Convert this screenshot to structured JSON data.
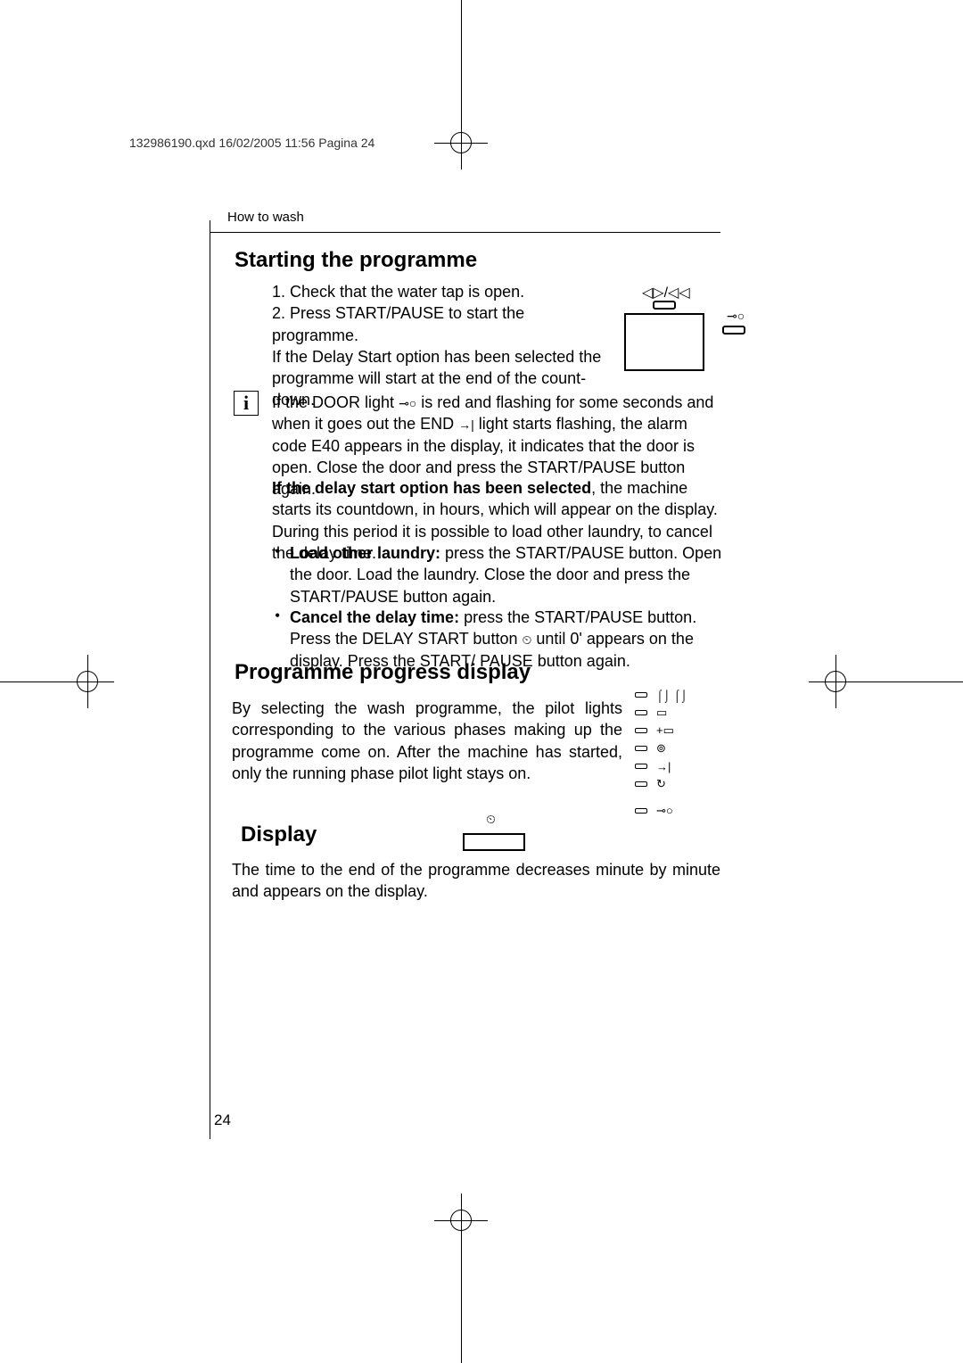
{
  "header": {
    "doc_info": "132986190.qxd  16/02/2005  11:56  Pagina 24",
    "section": "How to wash"
  },
  "headings": {
    "starting": "Starting the programme",
    "progress": "Programme progress display",
    "display": "Display"
  },
  "paragraphs": {
    "p1_line1": "1. Check that the water tap is open.",
    "p1_line2": "2. Press START/PAUSE to start the programme.",
    "p1_line3": "If the Delay Start option has been selected the programme will start at the end of the count-down.",
    "p2_a": "If the DOOR light ",
    "p2_b": " is red and flashing for some seconds and when it goes out the END ",
    "p2_c": " light starts flashing, the alarm code E40 appears in the display, it indicates that the door is open. Close the door and press the START/PAUSE button again.",
    "p3_bold": "If the delay start option has been selected",
    "p3_rest": ", the machine starts its countdown, in hours, which will appear on the display. During this period it is possible to load other laundry, to cancel the delay time.",
    "b1_bold": "Load other laundry:",
    "b1_rest": " press the START/PAUSE button. Open the door. Load the laundry. Close the door and press the START/PAUSE button again.",
    "b2_bold": "Cancel the delay time:",
    "b2_rest_a": " press the START/PAUSE button. Press the DELAY START button ",
    "b2_rest_b": " until 0' appears on the display. Press the START/ PAUSE button again.",
    "progress": "By selecting the wash programme, the pilot lights corresponding to the various phases making up the programme come on. After the machine has started, only the running phase pilot light stays on.",
    "display": "The time to the end of the programme decreases minute by minute and appears on the display."
  },
  "icons": {
    "door": "⊸○",
    "end": "→|",
    "clock": "⏲",
    "start_pause": "◁▷/◁◁",
    "fig3_sym": "⏲"
  },
  "fig2_symbols": [
    "⌠⌡ ⌠⌡",
    "▭",
    "+▭",
    "⊚",
    "→|",
    "↻",
    "⊸○"
  ],
  "page_number": "24",
  "colors": {
    "text": "#000000",
    "background": "#ffffff",
    "border": "#000000"
  }
}
